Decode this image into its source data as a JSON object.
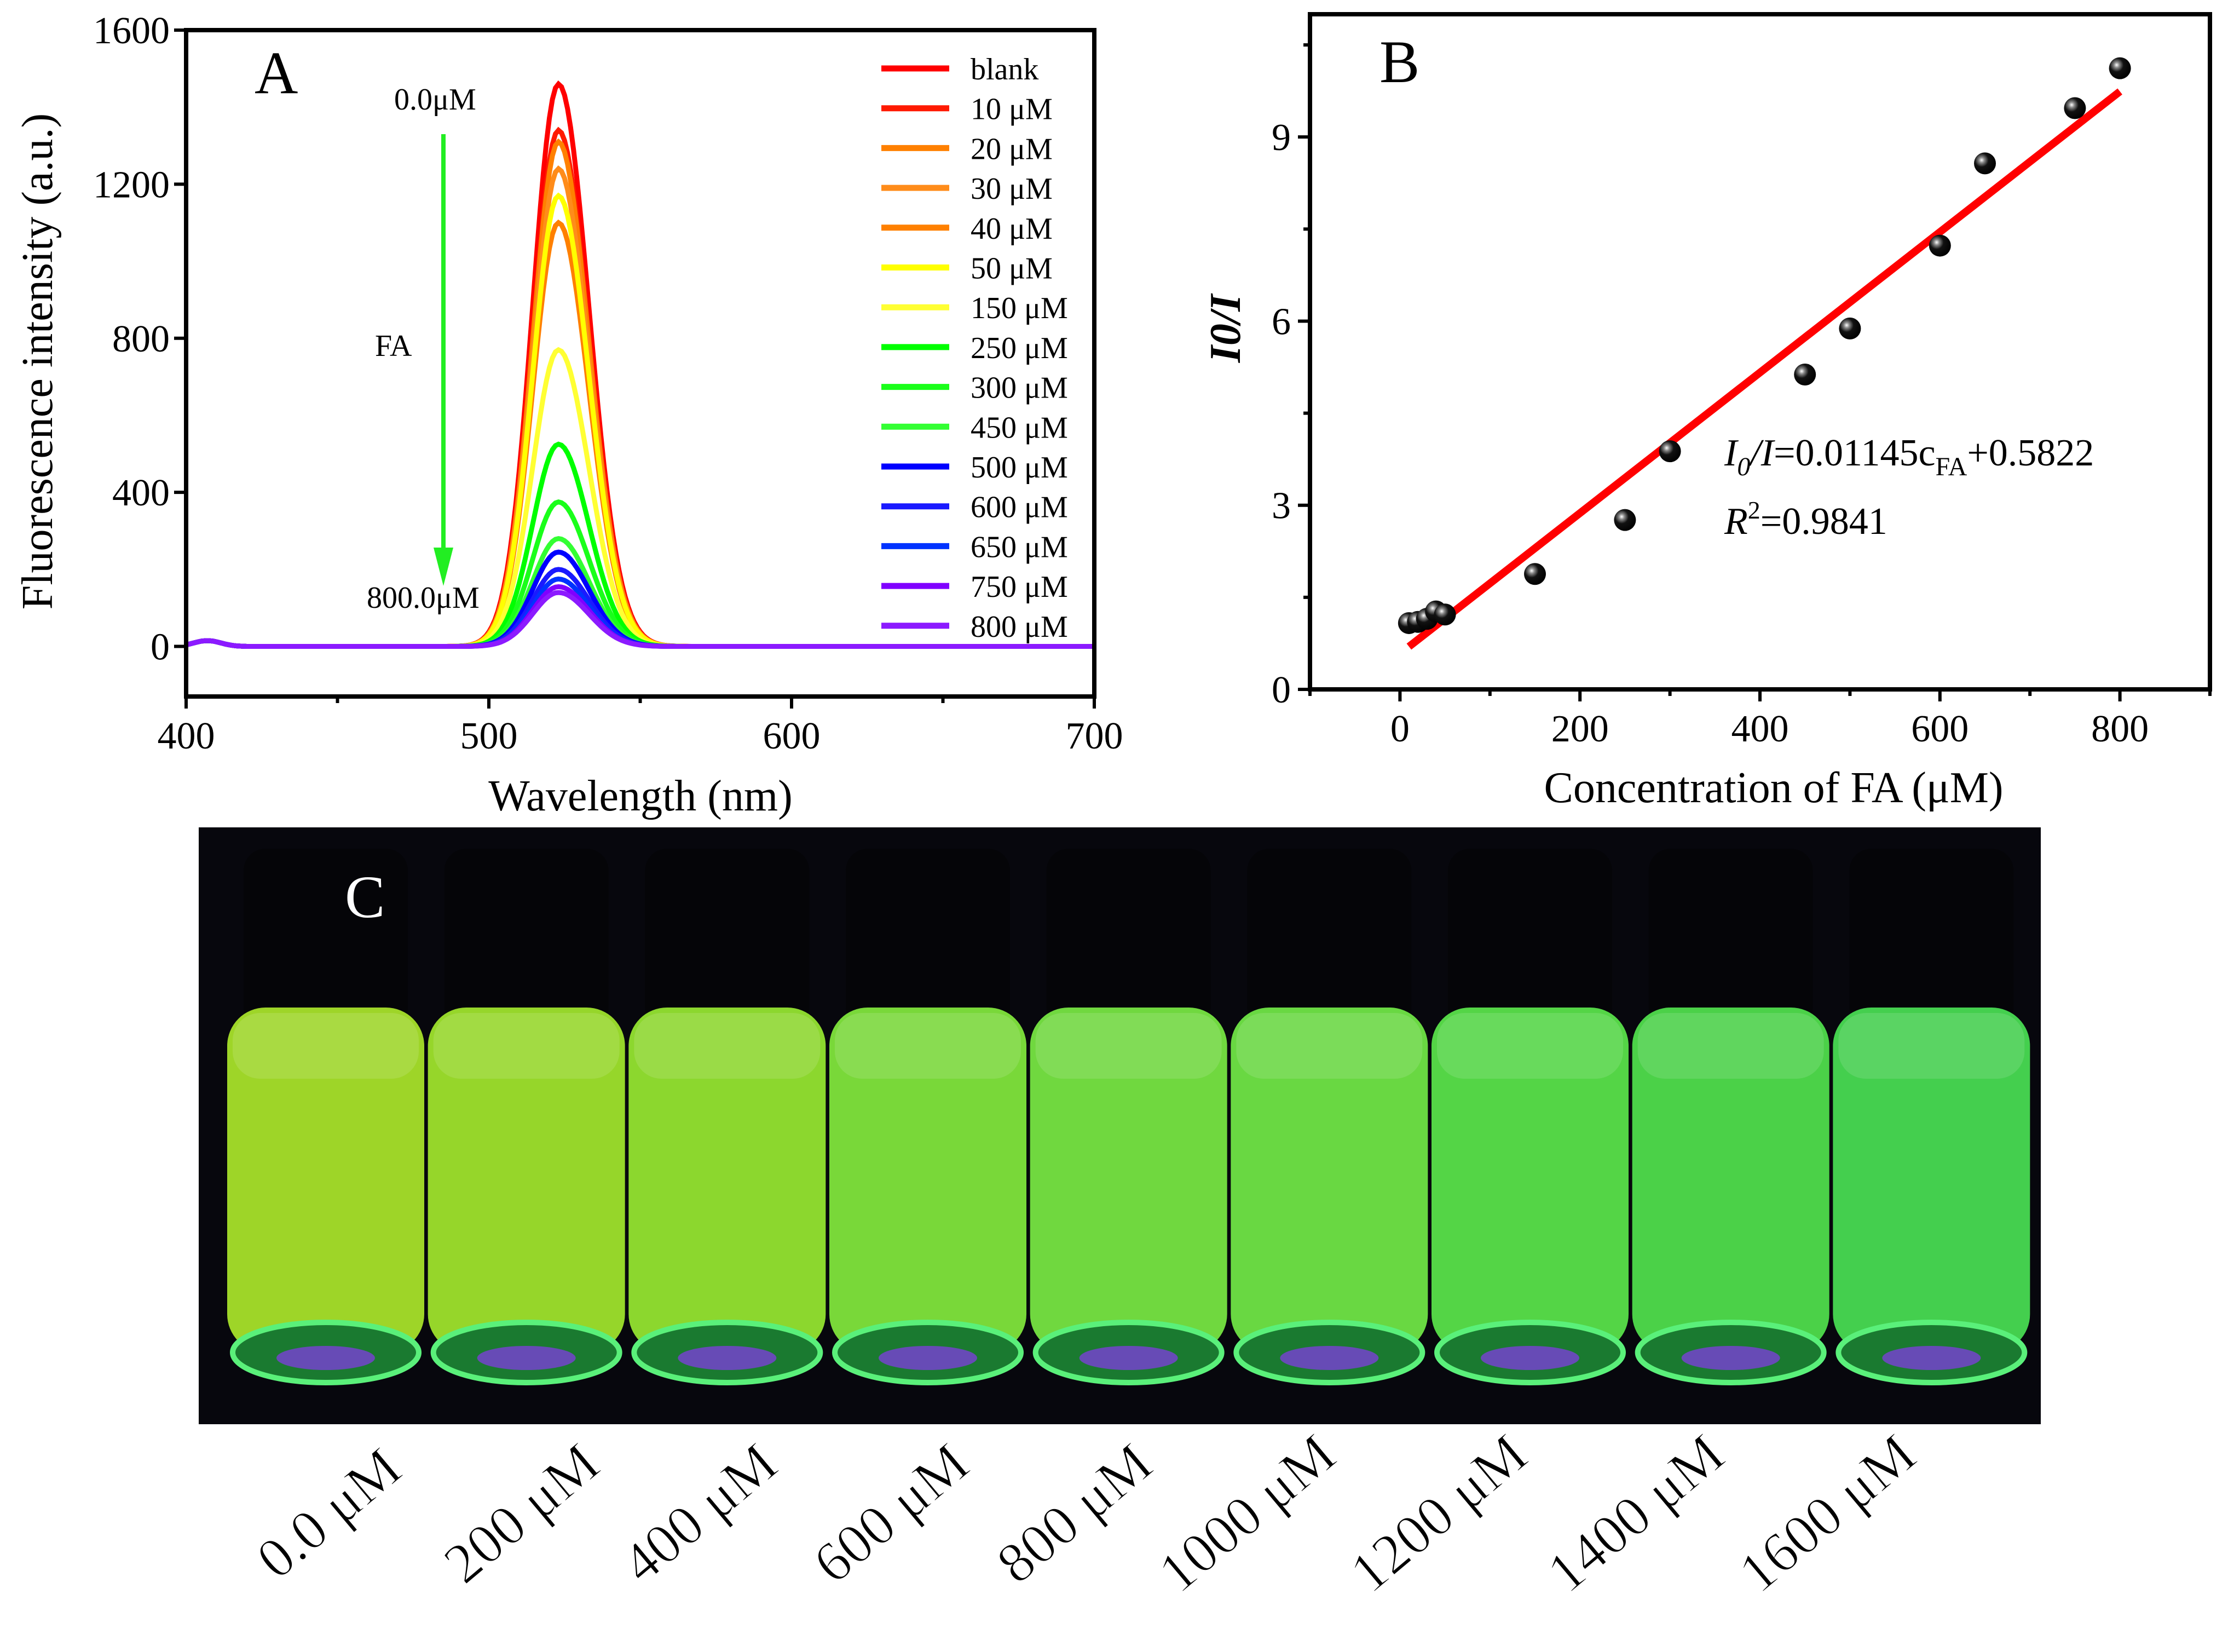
{
  "chart_data": [
    {
      "panel": "A",
      "type": "line",
      "xlabel": "Wavelength (nm)",
      "ylabel": "Fluorescence intensity (a.u.)",
      "xlim": [
        400,
        700
      ],
      "ylim": [
        -130,
        1600
      ],
      "xticks": [
        400,
        500,
        600,
        700
      ],
      "yticks": [
        0,
        400,
        800,
        1200,
        1600
      ],
      "peak_wavelength": 523,
      "legend_position": "top-right",
      "annotations": {
        "top": "0.0μM",
        "middle": "FA",
        "bottom": "800.0μM"
      },
      "series": [
        {
          "name": "blank",
          "color": "#ff0000",
          "peak": 1460
        },
        {
          "name": "10 μM",
          "color": "#ff1a00",
          "peak": 1340
        },
        {
          "name": "20 μM",
          "color": "#ff8000",
          "peak": 1310
        },
        {
          "name": "30 μM",
          "color": "#ff8c1a",
          "peak": 1240
        },
        {
          "name": "40 μM",
          "color": "#ff8000",
          "peak": 1100
        },
        {
          "name": "50 μM",
          "color": "#ffff00",
          "peak": 1170
        },
        {
          "name": "150 μM",
          "color": "#ffff33",
          "peak": 770
        },
        {
          "name": "250 μM",
          "color": "#00ff00",
          "peak": 525
        },
        {
          "name": "300 μM",
          "color": "#1aff1a",
          "peak": 375
        },
        {
          "name": "450 μM",
          "color": "#33ff33",
          "peak": 280
        },
        {
          "name": "500 μM",
          "color": "#0000ff",
          "peak": 245
        },
        {
          "name": "600 μM",
          "color": "#1a1aff",
          "peak": 200
        },
        {
          "name": "650 μM",
          "color": "#0033ff",
          "peak": 175
        },
        {
          "name": "750 μM",
          "color": "#8000ff",
          "peak": 155
        },
        {
          "name": "800 μM",
          "color": "#8c1aff",
          "peak": 140
        }
      ]
    },
    {
      "panel": "B",
      "type": "scatter",
      "xlabel": "Concentration of FA  (μM)",
      "ylabel": "I0/I",
      "xlim": [
        -100,
        900
      ],
      "ylim": [
        0,
        11
      ],
      "xticks": [
        0,
        200,
        400,
        600,
        800
      ],
      "yticks": [
        0,
        3,
        6,
        9
      ],
      "x": [
        10,
        20,
        30,
        40,
        50,
        150,
        250,
        300,
        450,
        500,
        600,
        650,
        750,
        800
      ],
      "y": [
        1.08,
        1.1,
        1.15,
        1.27,
        1.22,
        1.88,
        2.76,
        3.88,
        5.13,
        5.88,
        7.23,
        8.57,
        9.47,
        10.12
      ],
      "fit": {
        "slope": 0.01145,
        "intercept": 0.5822,
        "x_range": [
          10,
          800
        ],
        "color": "#ff0000"
      },
      "equation": {
        "lhs_main": "I",
        "lhs_sub": "0",
        "lhs_rest": "/I",
        "rhs_a": "=0.01145c",
        "rhs_sub": "FA",
        "rhs_b": "+0.5822"
      },
      "r2": {
        "label": "R",
        "sup": "2",
        "value": "=0.9841"
      }
    }
  ],
  "panel_letters": {
    "a": "A",
    "b": "B",
    "c": "C"
  },
  "photo": {
    "vial_labels": [
      "0.0 μM",
      "200 μM",
      "400 μM",
      "600 μM",
      "800 μM",
      "1000 μM",
      "1200 μM",
      "1400 μM",
      "1600 μM"
    ],
    "vial_colors": [
      "#a6e02a",
      "#9ee22c",
      "#93e330",
      "#7fe43c",
      "#76e442",
      "#6fe446",
      "#58e04a",
      "#4fdc4c",
      "#48da52"
    ]
  }
}
